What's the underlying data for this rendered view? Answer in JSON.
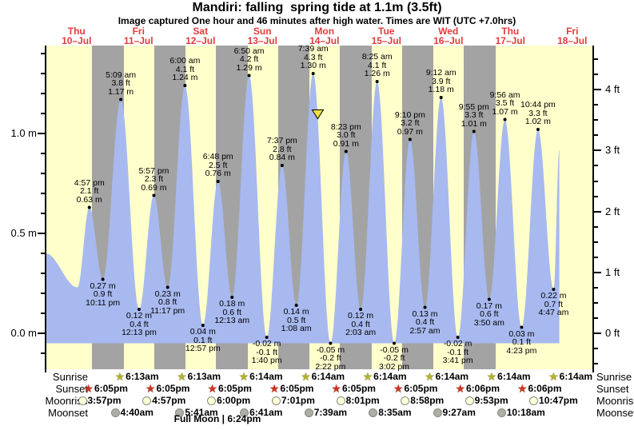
{
  "title": "Mandiri: falling  spring tide at 1.1m (3.5ft)",
  "subtitle": "Image captured One hour and 46 minutes after high water. Times are WIT (UTC +7.0hrs)",
  "colors": {
    "day_band": "#ffffcc",
    "night_band": "#a3a3a3",
    "tide_fill": "#a7b9ef",
    "date_label": "#e03c3c",
    "now_marker": "#f0e03c",
    "sunrise_star": "#b2b22a",
    "sunset_star": "#d43220",
    "moonrise_circle": "#ffffd8",
    "moonset_circle": "#aeaea6",
    "axis": "#000000"
  },
  "chart_data": {
    "type": "area",
    "title": "Mandiri: falling  spring tide at 1.1m (3.5ft)",
    "x_axis": {
      "days": [
        {
          "name": "Thu",
          "date": "10–Jul"
        },
        {
          "name": "Fri",
          "date": "11–Jul"
        },
        {
          "name": "Sat",
          "date": "12–Jul"
        },
        {
          "name": "Sun",
          "date": "13–Jul"
        },
        {
          "name": "Mon",
          "date": "14–Jul"
        },
        {
          "name": "Tue",
          "date": "15–Jul"
        },
        {
          "name": "Wed",
          "date": "16–Jul"
        },
        {
          "name": "Thu",
          "date": "17–Jul"
        },
        {
          "name": "Fri",
          "date": "18–Jul"
        }
      ]
    },
    "y_axis_left": {
      "unit": "m",
      "major_ticks": [
        {
          "label": "0.0 m",
          "value": 0
        },
        {
          "label": "0.5 m",
          "value": 0.5
        },
        {
          "label": "1.0 m",
          "value": 1.0
        }
      ],
      "minor_step": 0.1,
      "range": [
        -0.1,
        1.4
      ]
    },
    "y_axis_right": {
      "unit": "ft",
      "major_ticks": [
        {
          "label": "0 ft",
          "value": 0
        },
        {
          "label": "1 ft",
          "value": 1
        },
        {
          "label": "2 ft",
          "value": 2
        },
        {
          "label": "3 ft",
          "value": 3
        },
        {
          "label": "4 ft",
          "value": 4
        }
      ],
      "minor_step": 0.25,
      "range": [
        -0.5,
        4.5
      ]
    },
    "day_night_shading": {
      "sunset_hour": 18.083,
      "sunrise_hour": 6.217,
      "num_nights": 7
    },
    "now_marker": {
      "day": 4,
      "hour": 9.42
    },
    "tide_events": [
      {
        "day": 0,
        "hour": 0.0,
        "height_m": 0.4,
        "type": "edge"
      },
      {
        "day": 0,
        "hour": 12.33,
        "height_m": 0.23,
        "type": "low"
      },
      {
        "day": 0,
        "hour": 16.95,
        "height_m": 0.63,
        "type": "high",
        "time": "4:57 pm",
        "ft_label": "2.1 ft",
        "m_label": "0.63 m"
      },
      {
        "day": 0,
        "hour": 22.18,
        "height_m": 0.27,
        "type": "low",
        "time": "10:11 pm",
        "ft_label": "0.9 ft",
        "m_label": "0.27 m"
      },
      {
        "day": 1,
        "hour": 5.15,
        "height_m": 1.17,
        "type": "high",
        "time": "5:09 am",
        "ft_label": "3.8 ft",
        "m_label": "1.17 m"
      },
      {
        "day": 1,
        "hour": 12.22,
        "height_m": 0.12,
        "type": "low",
        "time": "12:13 pm",
        "ft_label": "0.4 ft",
        "m_label": "0.12 m"
      },
      {
        "day": 1,
        "hour": 17.95,
        "height_m": 0.69,
        "type": "high",
        "time": "5:57 pm",
        "ft_label": "2.3 ft",
        "m_label": "0.69 m"
      },
      {
        "day": 1,
        "hour": 23.28,
        "height_m": 0.23,
        "type": "low",
        "time": "11:17 pm",
        "ft_label": "0.8 ft",
        "m_label": "0.23 m"
      },
      {
        "day": 2,
        "hour": 6.0,
        "height_m": 1.24,
        "type": "high",
        "time": "6:00 am",
        "ft_label": "4.1 ft",
        "m_label": "1.24 m"
      },
      {
        "day": 2,
        "hour": 12.95,
        "height_m": 0.04,
        "type": "low",
        "time": "12:57 pm",
        "ft_label": "0.1 ft",
        "m_label": "0.04 m"
      },
      {
        "day": 2,
        "hour": 18.8,
        "height_m": 0.76,
        "type": "high",
        "time": "6:48 pm",
        "ft_label": "2.5 ft",
        "m_label": "0.76 m"
      },
      {
        "day": 3,
        "hour": 0.22,
        "height_m": 0.18,
        "type": "low",
        "time": "12:13 am",
        "ft_label": "0.6 ft",
        "m_label": "0.18 m"
      },
      {
        "day": 3,
        "hour": 6.83,
        "height_m": 1.29,
        "type": "high",
        "time": "6:50 am",
        "ft_label": "4.2 ft",
        "m_label": "1.29 m"
      },
      {
        "day": 3,
        "hour": 13.67,
        "height_m": -0.02,
        "type": "low",
        "time": "1:40 pm",
        "ft_label": "-0.1 ft",
        "m_label": "-0.02 m"
      },
      {
        "day": 3,
        "hour": 19.62,
        "height_m": 0.84,
        "type": "high",
        "time": "7:37 pm",
        "ft_label": "2.8 ft",
        "m_label": "0.84 m"
      },
      {
        "day": 4,
        "hour": 1.13,
        "height_m": 0.14,
        "type": "low",
        "time": "1:08 am",
        "ft_label": "0.5 ft",
        "m_label": "0.14 m"
      },
      {
        "day": 4,
        "hour": 7.65,
        "height_m": 1.3,
        "type": "high",
        "time": "7:39 am",
        "ft_label": "4.3 ft",
        "m_label": "1.30 m"
      },
      {
        "day": 4,
        "hour": 14.37,
        "height_m": -0.05,
        "type": "low",
        "time": "2:22 pm",
        "ft_label": "-0.2 ft",
        "m_label": "-0.05 m"
      },
      {
        "day": 4,
        "hour": 20.38,
        "height_m": 0.91,
        "type": "high",
        "time": "8:23 pm",
        "ft_label": "3.0 ft",
        "m_label": "0.91 m"
      },
      {
        "day": 5,
        "hour": 2.05,
        "height_m": 0.12,
        "type": "low",
        "time": "2:03 am",
        "ft_label": "0.4 ft",
        "m_label": "0.12 m"
      },
      {
        "day": 5,
        "hour": 8.42,
        "height_m": 1.26,
        "type": "high",
        "time": "8:25 am",
        "ft_label": "4.1 ft",
        "m_label": "1.26 m"
      },
      {
        "day": 5,
        "hour": 15.03,
        "height_m": -0.05,
        "type": "low",
        "time": "3:02 pm",
        "ft_label": "-0.2 ft",
        "m_label": "-0.05 m"
      },
      {
        "day": 5,
        "hour": 21.17,
        "height_m": 0.97,
        "type": "high",
        "time": "9:10 pm",
        "ft_label": "3.2 ft",
        "m_label": "0.97 m"
      },
      {
        "day": 6,
        "hour": 2.95,
        "height_m": 0.13,
        "type": "low",
        "time": "2:57 am",
        "ft_label": "0.4 ft",
        "m_label": "0.13 m"
      },
      {
        "day": 6,
        "hour": 9.2,
        "height_m": 1.18,
        "type": "high",
        "time": "9:12 am",
        "ft_label": "3.9 ft",
        "m_label": "1.18 m"
      },
      {
        "day": 6,
        "hour": 15.68,
        "height_m": -0.02,
        "type": "low",
        "time": "3:41 pm",
        "ft_label": "-0.1 ft",
        "m_label": "-0.02 m"
      },
      {
        "day": 6,
        "hour": 21.92,
        "height_m": 1.01,
        "type": "high",
        "time": "9:55 pm",
        "ft_label": "3.3 ft",
        "m_label": "1.01 m"
      },
      {
        "day": 7,
        "hour": 3.83,
        "height_m": 0.17,
        "type": "low",
        "time": "3:50 am",
        "ft_label": "0.6 ft",
        "m_label": "0.17 m"
      },
      {
        "day": 7,
        "hour": 9.93,
        "height_m": 1.07,
        "type": "high",
        "time": "9:56 am",
        "ft_label": "3.5 ft",
        "m_label": "1.07 m"
      },
      {
        "day": 7,
        "hour": 16.38,
        "height_m": 0.03,
        "type": "low",
        "time": "4:23 pm",
        "ft_label": "0.1 ft",
        "m_label": "0.03 m"
      },
      {
        "day": 7,
        "hour": 22.73,
        "height_m": 1.02,
        "type": "high",
        "time": "10:44 pm",
        "ft_label": "3.3 ft",
        "m_label": "1.02 m"
      },
      {
        "day": 8,
        "hour": 4.78,
        "height_m": 0.22,
        "type": "low",
        "time": "4:47 am",
        "ft_label": "0.7 ft",
        "m_label": "0.22 m"
      },
      {
        "day": 8,
        "hour": 7.0,
        "height_m": 0.92,
        "type": "edge"
      }
    ]
  },
  "almanac": {
    "rows": [
      {
        "id": "sunrise",
        "label": "Sunrise",
        "marker": "star",
        "entries": [
          {
            "day": 1,
            "hour": 6.22,
            "time": "6:13am"
          },
          {
            "day": 2,
            "hour": 6.22,
            "time": "6:13am"
          },
          {
            "day": 3,
            "hour": 6.23,
            "time": "6:14am"
          },
          {
            "day": 4,
            "hour": 6.23,
            "time": "6:14am"
          },
          {
            "day": 5,
            "hour": 6.23,
            "time": "6:14am"
          },
          {
            "day": 6,
            "hour": 6.23,
            "time": "6:14am"
          },
          {
            "day": 7,
            "hour": 6.23,
            "time": "6:14am"
          },
          {
            "day": 8,
            "hour": 6.23,
            "time": "6:14am"
          }
        ]
      },
      {
        "id": "sunset",
        "label": "Sunset",
        "marker": "star",
        "entries": [
          {
            "day": 0,
            "hour": 18.08,
            "time": "6:05pm"
          },
          {
            "day": 1,
            "hour": 18.08,
            "time": "6:05pm"
          },
          {
            "day": 2,
            "hour": 18.08,
            "time": "6:05pm"
          },
          {
            "day": 3,
            "hour": 18.08,
            "time": "6:05pm"
          },
          {
            "day": 4,
            "hour": 18.08,
            "time": "6:05pm"
          },
          {
            "day": 5,
            "hour": 18.08,
            "time": "6:05pm"
          },
          {
            "day": 6,
            "hour": 18.1,
            "time": "6:06pm"
          },
          {
            "day": 7,
            "hour": 18.1,
            "time": "6:06pm"
          }
        ]
      },
      {
        "id": "moonrise",
        "label": "Moonrise",
        "marker": "circle",
        "entries": [
          {
            "day": 0,
            "hour": 15.95,
            "time": "3:57pm"
          },
          {
            "day": 1,
            "hour": 16.95,
            "time": "4:57pm"
          },
          {
            "day": 2,
            "hour": 18.0,
            "time": "6:00pm"
          },
          {
            "day": 3,
            "hour": 19.02,
            "time": "7:01pm"
          },
          {
            "day": 4,
            "hour": 20.02,
            "time": "8:01pm"
          },
          {
            "day": 5,
            "hour": 20.97,
            "time": "8:58pm"
          },
          {
            "day": 6,
            "hour": 21.88,
            "time": "9:53pm"
          },
          {
            "day": 7,
            "hour": 22.78,
            "time": "10:47pm"
          }
        ]
      },
      {
        "id": "moonset",
        "label": "Moonset",
        "marker": "circle",
        "entries": [
          {
            "day": 1,
            "hour": 4.67,
            "time": "4:40am"
          },
          {
            "day": 2,
            "hour": 5.68,
            "time": "5:41am"
          },
          {
            "day": 3,
            "hour": 6.68,
            "time": "6:41am"
          },
          {
            "day": 4,
            "hour": 7.65,
            "time": "7:39am"
          },
          {
            "day": 5,
            "hour": 8.58,
            "time": "8:35am"
          },
          {
            "day": 6,
            "hour": 9.45,
            "time": "9:27am"
          },
          {
            "day": 7,
            "hour": 10.3,
            "time": "10:18am"
          }
        ]
      }
    ],
    "full_moon": "Full Moon | 6:24pm"
  }
}
